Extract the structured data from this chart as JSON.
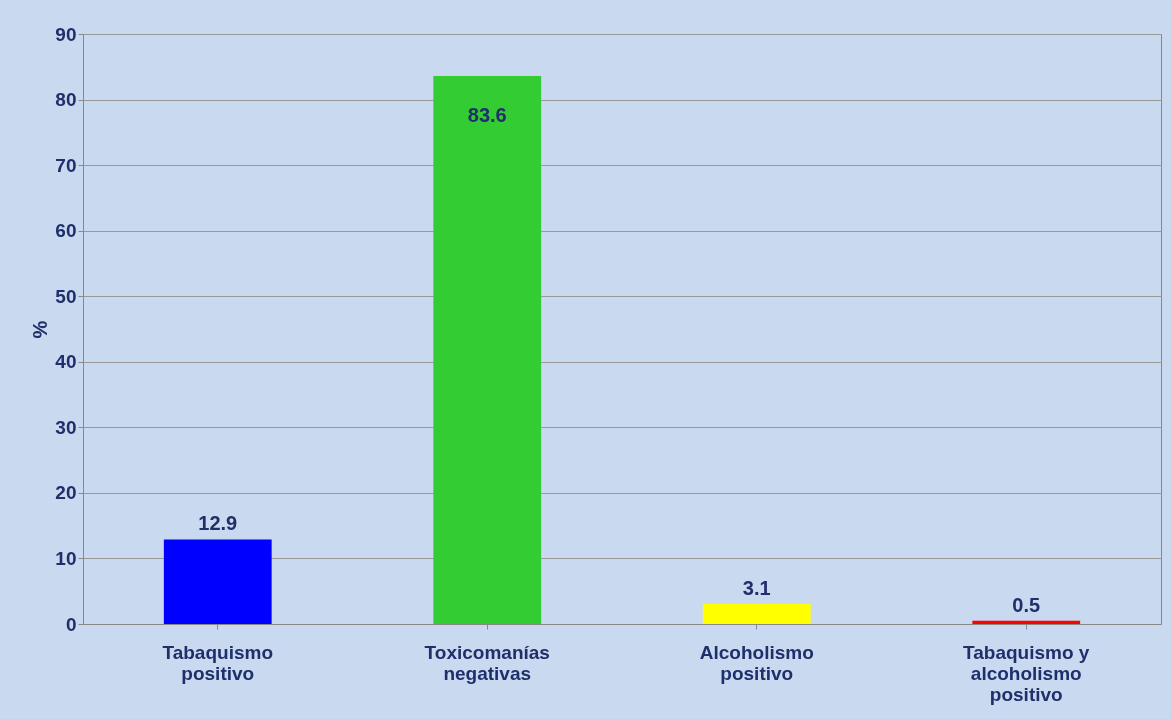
{
  "chart_data": {
    "type": "bar",
    "ylabel": "%",
    "categories": [
      "Tabaquismo positivo",
      "Toxicomanías negativas",
      "Alcoholismo positivo",
      "Tabaquismo y alcoholismo positivo"
    ],
    "values": [
      12.9,
      83.6,
      3.1,
      0.5
    ],
    "colors": [
      "#0000ff",
      "#33cc33",
      "#ffff00",
      "#ff0000"
    ],
    "ylim": [
      0,
      90
    ],
    "yticks": [
      0,
      10,
      20,
      30,
      40,
      50,
      60,
      70,
      80,
      90
    ],
    "grid": "y",
    "data_labels": true
  }
}
